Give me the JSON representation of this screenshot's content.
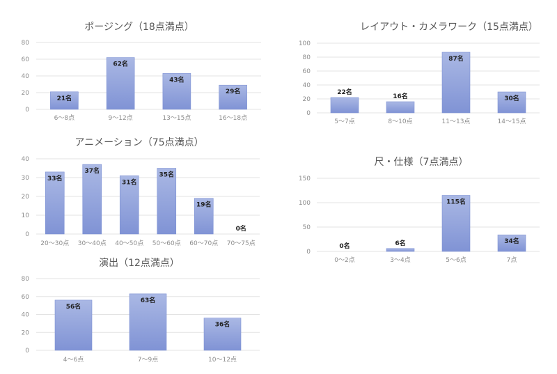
{
  "chart_data": [
    {
      "type": "bar",
      "title": "ポージング（18点満点）",
      "categories": [
        "6～8点",
        "9～12点",
        "13～15点",
        "16～18点"
      ],
      "values": [
        21,
        62,
        43,
        29
      ],
      "data_labels": [
        "21名",
        "62名",
        "43名",
        "29名"
      ],
      "ylim": [
        0,
        80
      ],
      "yticks": [
        0,
        20,
        40,
        60,
        80
      ],
      "xlabel": "",
      "ylabel": "",
      "grid": true
    },
    {
      "type": "bar",
      "title": "レイアウト・カメラワーク（15点満点）",
      "categories": [
        "5～7点",
        "8～10点",
        "11～13点",
        "14～15点"
      ],
      "values": [
        22,
        16,
        87,
        30
      ],
      "data_labels": [
        "22名",
        "16名",
        "87名",
        "30名"
      ],
      "ylim": [
        0,
        100
      ],
      "yticks": [
        0,
        20,
        40,
        60,
        80,
        100
      ],
      "xlabel": "",
      "ylabel": "",
      "grid": true
    },
    {
      "type": "bar",
      "title": "アニメーション（75点満点）",
      "categories": [
        "20～30点",
        "30～40点",
        "40～50点",
        "50～60点",
        "60～70点",
        "70～75点"
      ],
      "values": [
        33,
        37,
        31,
        35,
        19,
        0
      ],
      "data_labels": [
        "33名",
        "37名",
        "31名",
        "35名",
        "19名",
        "0名"
      ],
      "ylim": [
        0,
        40
      ],
      "yticks": [
        0,
        10,
        20,
        30,
        40
      ],
      "xlabel": "",
      "ylabel": "",
      "grid": true
    },
    {
      "type": "bar",
      "title": "尺・仕様（7点満点）",
      "categories": [
        "0～2点",
        "3～4点",
        "5～6点",
        "7点"
      ],
      "values": [
        0,
        6,
        115,
        34
      ],
      "data_labels": [
        "0名",
        "6名",
        "115名",
        "34名"
      ],
      "ylim": [
        0,
        150
      ],
      "yticks": [
        0,
        50,
        100,
        150
      ],
      "xlabel": "",
      "ylabel": "",
      "grid": true
    },
    {
      "type": "bar",
      "title": "演出（12点満点）",
      "categories": [
        "4～6点",
        "7～9点",
        "10～12点"
      ],
      "values": [
        56,
        63,
        36
      ],
      "data_labels": [
        "56名",
        "63名",
        "36名"
      ],
      "ylim": [
        0,
        80
      ],
      "yticks": [
        0,
        20,
        40,
        60,
        80
      ],
      "xlabel": "",
      "ylabel": "",
      "grid": true
    }
  ],
  "colors": {
    "bar_top": "#aab8e4",
    "bar_bottom": "#8093d5",
    "bar_border": "#7e92d4"
  }
}
